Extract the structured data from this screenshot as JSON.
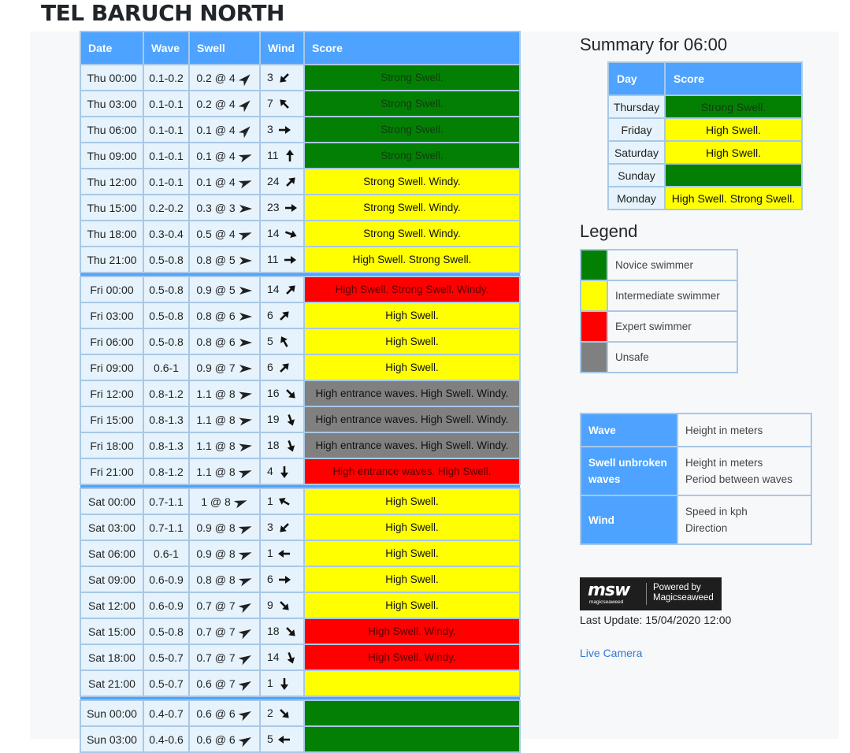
{
  "page_title": "TEL BARUCH NORTH",
  "forecast": {
    "headers": [
      "Date",
      "Wave",
      "Swell",
      "Wind",
      "Score"
    ],
    "days": [
      {
        "rows": [
          {
            "date": "Thu 00:00",
            "wave": "0.1-0.2",
            "swell": "0.2 @ 4",
            "swell_dir": 135,
            "wind": "3",
            "wind_dir": 225,
            "score": "Strong Swell.",
            "color": "green"
          },
          {
            "date": "Thu 03:00",
            "wave": "0.1-0.1",
            "swell": "0.2 @ 4",
            "swell_dir": 135,
            "wind": "7",
            "wind_dir": 315,
            "score": "Strong Swell.",
            "color": "green"
          },
          {
            "date": "Thu 06:00",
            "wave": "0.1-0.1",
            "swell": "0.1 @ 4",
            "swell_dir": 135,
            "wind": "3",
            "wind_dir": 90,
            "score": "Strong Swell.",
            "color": "green"
          },
          {
            "date": "Thu 09:00",
            "wave": "0.1-0.1",
            "swell": "0.1 @ 4",
            "swell_dir": 160,
            "wind": "11",
            "wind_dir": 0,
            "score": "Strong Swell.",
            "color": "green"
          },
          {
            "date": "Thu 12:00",
            "wave": "0.1-0.1",
            "swell": "0.1 @ 4",
            "swell_dir": 160,
            "wind": "24",
            "wind_dir": 45,
            "score": "Strong Swell. Windy.",
            "color": "yellow"
          },
          {
            "date": "Thu 15:00",
            "wave": "0.2-0.2",
            "swell": "0.3 @ 3",
            "swell_dir": 180,
            "wind": "23",
            "wind_dir": 90,
            "score": "Strong Swell. Windy.",
            "color": "yellow"
          },
          {
            "date": "Thu 18:00",
            "wave": "0.3-0.4",
            "swell": "0.5 @ 4",
            "swell_dir": 160,
            "wind": "14",
            "wind_dir": 110,
            "score": "Strong Swell. Windy.",
            "color": "yellow"
          },
          {
            "date": "Thu 21:00",
            "wave": "0.5-0.8",
            "swell": "0.8 @ 5",
            "swell_dir": 180,
            "wind": "11",
            "wind_dir": 90,
            "score": "High Swell. Strong Swell.",
            "color": "yellow"
          }
        ]
      },
      {
        "rows": [
          {
            "date": "Fri 00:00",
            "wave": "0.5-0.8",
            "swell": "0.9 @ 5",
            "swell_dir": 180,
            "wind": "14",
            "wind_dir": 45,
            "score": "High Swell. Strong Swell. Windy.",
            "color": "red"
          },
          {
            "date": "Fri 03:00",
            "wave": "0.5-0.8",
            "swell": "0.8 @ 6",
            "swell_dir": 180,
            "wind": "6",
            "wind_dir": 45,
            "score": "High Swell.",
            "color": "yellow"
          },
          {
            "date": "Fri 06:00",
            "wave": "0.5-0.8",
            "swell": "0.8 @ 6",
            "swell_dir": 180,
            "wind": "5",
            "wind_dir": 330,
            "score": "High Swell.",
            "color": "yellow"
          },
          {
            "date": "Fri 09:00",
            "wave": "0.6-1",
            "swell": "0.9 @ 7",
            "swell_dir": 180,
            "wind": "6",
            "wind_dir": 45,
            "score": "High Swell.",
            "color": "yellow"
          },
          {
            "date": "Fri 12:00",
            "wave": "0.8-1.2",
            "swell": "1.1 @ 8",
            "swell_dir": 170,
            "wind": "16",
            "wind_dir": 135,
            "score": "High entrance waves. High Swell. Windy.",
            "color": "gray"
          },
          {
            "date": "Fri 15:00",
            "wave": "0.8-1.3",
            "swell": "1.1 @ 8",
            "swell_dir": 170,
            "wind": "19",
            "wind_dir": 160,
            "score": "High entrance waves. High Swell. Windy.",
            "color": "gray"
          },
          {
            "date": "Fri 18:00",
            "wave": "0.8-1.3",
            "swell": "1.1 @ 8",
            "swell_dir": 170,
            "wind": "18",
            "wind_dir": 160,
            "score": "High entrance waves. High Swell. Windy.",
            "color": "gray"
          },
          {
            "date": "Fri 21:00",
            "wave": "0.8-1.2",
            "swell": "1.1 @ 8",
            "swell_dir": 160,
            "wind": "4",
            "wind_dir": 180,
            "score": "High entrance waves. High Swell.",
            "color": "red"
          }
        ]
      },
      {
        "rows": [
          {
            "date": "Sat 00:00",
            "wave": "0.7-1.1",
            "swell": "1 @ 8",
            "swell_dir": 160,
            "wind": "1",
            "wind_dir": 300,
            "score": "High Swell.",
            "color": "yellow"
          },
          {
            "date": "Sat 03:00",
            "wave": "0.7-1.1",
            "swell": "0.9 @ 8",
            "swell_dir": 160,
            "wind": "3",
            "wind_dir": 225,
            "score": "High Swell.",
            "color": "yellow"
          },
          {
            "date": "Sat 06:00",
            "wave": "0.6-1",
            "swell": "0.9 @ 8",
            "swell_dir": 160,
            "wind": "1",
            "wind_dir": 270,
            "score": "High Swell.",
            "color": "yellow"
          },
          {
            "date": "Sat 09:00",
            "wave": "0.6-0.9",
            "swell": "0.8 @ 8",
            "swell_dir": 160,
            "wind": "6",
            "wind_dir": 90,
            "score": "High Swell.",
            "color": "yellow"
          },
          {
            "date": "Sat 12:00",
            "wave": "0.6-0.9",
            "swell": "0.7 @ 7",
            "swell_dir": 150,
            "wind": "9",
            "wind_dir": 135,
            "score": "High Swell.",
            "color": "yellow"
          },
          {
            "date": "Sat 15:00",
            "wave": "0.5-0.8",
            "swell": "0.7 @ 7",
            "swell_dir": 150,
            "wind": "18",
            "wind_dir": 135,
            "score": "High Swell. Windy.",
            "color": "red"
          },
          {
            "date": "Sat 18:00",
            "wave": "0.5-0.7",
            "swell": "0.7 @ 7",
            "swell_dir": 150,
            "wind": "14",
            "wind_dir": 160,
            "score": "High Swell. Windy.",
            "color": "red"
          },
          {
            "date": "Sat 21:00",
            "wave": "0.5-0.7",
            "swell": "0.6 @ 7",
            "swell_dir": 150,
            "wind": "1",
            "wind_dir": 180,
            "score": "",
            "color": "yellow"
          }
        ]
      },
      {
        "rows": [
          {
            "date": "Sun 00:00",
            "wave": "0.4-0.7",
            "swell": "0.6 @ 6",
            "swell_dir": 150,
            "wind": "2",
            "wind_dir": 135,
            "score": "",
            "color": "green"
          },
          {
            "date": "Sun 03:00",
            "wave": "0.4-0.6",
            "swell": "0.6 @ 6",
            "swell_dir": 150,
            "wind": "5",
            "wind_dir": 270,
            "score": "",
            "color": "green"
          }
        ]
      }
    ]
  },
  "summary": {
    "title": "Summary for 06:00",
    "headers": [
      "Day",
      "Score"
    ],
    "rows": [
      {
        "day": "Thursday",
        "score": "Strong Swell.",
        "color": "green"
      },
      {
        "day": "Friday",
        "score": "High Swell.",
        "color": "yellow"
      },
      {
        "day": "Saturday",
        "score": "High Swell.",
        "color": "yellow"
      },
      {
        "day": "Sunday",
        "score": "",
        "color": "green"
      },
      {
        "day": "Monday",
        "score": "High Swell. Strong Swell.",
        "color": "yellow"
      }
    ]
  },
  "legend": {
    "title": "Legend",
    "items": [
      {
        "label": "Novice swimmer",
        "color": "#038003"
      },
      {
        "label": "Intermediate swimmer",
        "color": "#ffff00"
      },
      {
        "label": "Expert swimmer",
        "color": "#ff0000"
      },
      {
        "label": "Unsafe",
        "color": "#808080"
      }
    ]
  },
  "info": [
    {
      "key": "Wave",
      "lines": [
        "Height in meters"
      ]
    },
    {
      "key": "Swell unbroken waves",
      "lines": [
        "Height in meters",
        "Period between waves"
      ]
    },
    {
      "key": "Wind",
      "lines": [
        "Speed in kph",
        "Direction"
      ]
    }
  ],
  "msw": {
    "mark": "msw",
    "sub": "magicseaweed",
    "powered": "Powered by",
    "brand": "Magicseaweed"
  },
  "last_update": "Last Update: 15/04/2020 12:00",
  "live_camera": "Live Camera",
  "colors": {
    "green": "#038003",
    "yellow": "#ffff00",
    "red": "#ff0000",
    "gray": "#808080",
    "header": "#4da3ff",
    "cell": "#e6f3fc"
  }
}
